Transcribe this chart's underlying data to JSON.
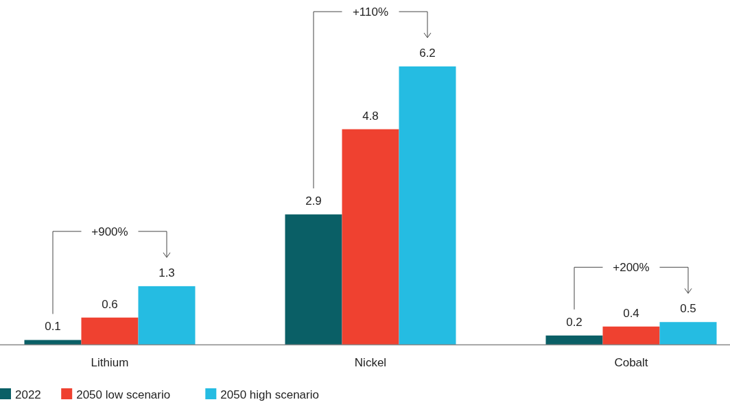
{
  "chart_data": {
    "type": "bar",
    "categories": [
      "Lithium",
      "Nickel",
      "Cobalt"
    ],
    "series": [
      {
        "name": "2022",
        "color": "#0a5f66",
        "values": [
          0.1,
          2.9,
          0.2
        ]
      },
      {
        "name": "2050 low scenario",
        "color": "#ef4130",
        "values": [
          0.6,
          4.8,
          0.4
        ]
      },
      {
        "name": "2050 high scenario",
        "color": "#25bce2",
        "values": [
          1.3,
          6.2,
          0.5
        ]
      }
    ],
    "data_labels": true,
    "legend": "bottom left",
    "annotations": [
      "+900%",
      "+110%",
      "+200%"
    ]
  }
}
